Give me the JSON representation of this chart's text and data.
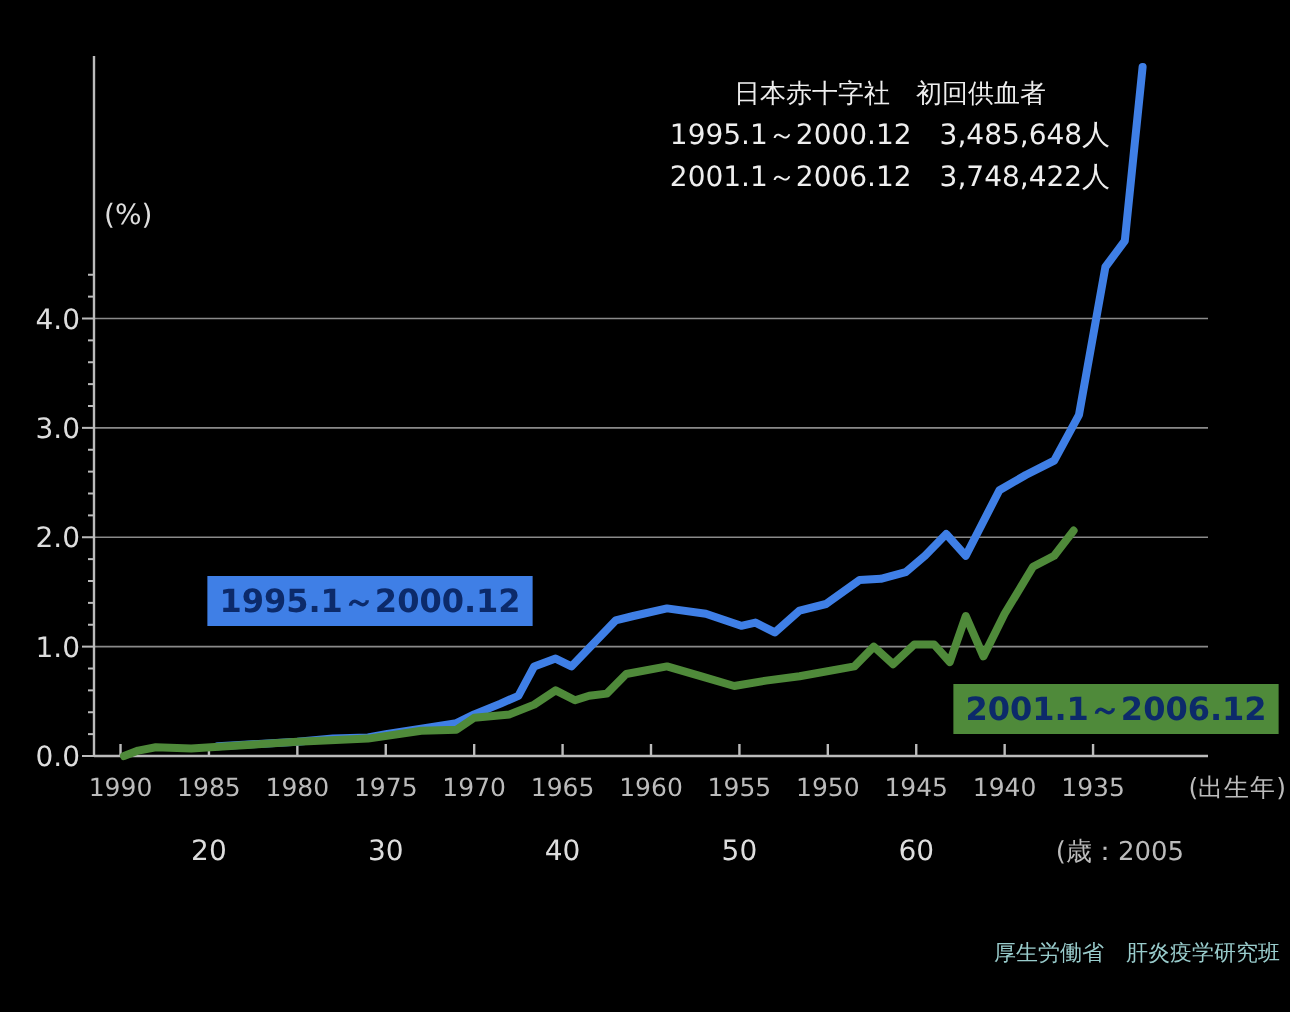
{
  "chart_data": {
    "type": "line",
    "xlabel": "(出生年)",
    "ylabel": "(%)",
    "x2label": "(歳：2005",
    "xlim": [
      1991.5,
      1928.5
    ],
    "xticks": [
      1990,
      1985,
      1980,
      1975,
      1970,
      1965,
      1960,
      1955,
      1950,
      1945,
      1940,
      1935
    ],
    "x2lim": [
      13.5,
      76.5
    ],
    "x2ticks": [
      20,
      30,
      40,
      50,
      60
    ],
    "ylim": [
      0,
      6.4
    ],
    "yticks": [
      {
        "value": 0,
        "label": "0.0"
      },
      {
        "value": 0.2,
        "label": null
      },
      {
        "value": 0.4,
        "label": null
      },
      {
        "value": 0.6,
        "label": null
      },
      {
        "value": 0.8,
        "label": null
      },
      {
        "value": 1,
        "label": "1.0"
      },
      {
        "value": 1.2,
        "label": null
      },
      {
        "value": 1.4,
        "label": null
      },
      {
        "value": 1.6,
        "label": null
      },
      {
        "value": 1.8,
        "label": null
      },
      {
        "value": 2,
        "label": "2.0"
      },
      {
        "value": 2.2,
        "label": null
      },
      {
        "value": 2.4,
        "label": null
      },
      {
        "value": 2.6,
        "label": null
      },
      {
        "value": 2.8,
        "label": null
      },
      {
        "value": 3,
        "label": "3.0"
      },
      {
        "value": 3.2,
        "label": null
      },
      {
        "value": 3.4,
        "label": null
      },
      {
        "value": 3.6,
        "label": null
      },
      {
        "value": 3.8,
        "label": null
      },
      {
        "value": 4,
        "label": "4.0"
      },
      {
        "value": 4.2,
        "label": null
      },
      {
        "value": 4.4,
        "label": null
      }
    ],
    "grid": "y",
    "series": [
      {
        "name": "1995.1～2000.12",
        "color": "#3f7fe6",
        "x": [
          1984.5,
          1980,
          1978,
          1976,
          1975,
          1973,
          1971,
          1970,
          1968.5,
          1967.5,
          1966.6,
          1965.4,
          1964.5,
          1962,
          1961,
          1959.1,
          1956.9,
          1954.9,
          1954.1,
          1953,
          1951.6,
          1950.1,
          1948.2,
          1947,
          1945.6,
          1944.5,
          1943.3,
          1942.2,
          1940.3,
          1938.8,
          1937.2,
          1935.8,
          1934.3,
          1933.2,
          1932.2
        ],
        "values": [
          0.09,
          0.13,
          0.16,
          0.17,
          0.2,
          0.25,
          0.3,
          0.38,
          0.48,
          0.55,
          0.82,
          0.89,
          0.82,
          1.24,
          1.28,
          1.35,
          1.3,
          1.19,
          1.22,
          1.13,
          1.33,
          1.39,
          1.61,
          1.62,
          1.68,
          1.83,
          2.03,
          1.83,
          2.43,
          2.57,
          2.7,
          3.12,
          4.47,
          4.71,
          6.3
        ]
      },
      {
        "name": "2001.1～2006.12",
        "color": "#4f8a3a",
        "x": [
          1989.8,
          1989,
          1988,
          1986,
          1984,
          1980,
          1976,
          1973,
          1971,
          1970,
          1968,
          1966.6,
          1965.4,
          1964.3,
          1963.5,
          1962.5,
          1961.4,
          1959.1,
          1957.2,
          1955.3,
          1953.5,
          1951.6,
          1948.5,
          1947.4,
          1946.3,
          1945.1,
          1944,
          1943.1,
          1942.2,
          1941.2,
          1940,
          1938.4,
          1937.2,
          1936.1
        ],
        "values": [
          0,
          0.05,
          0.08,
          0.07,
          0.09,
          0.13,
          0.16,
          0.23,
          0.24,
          0.35,
          0.38,
          0.47,
          0.6,
          0.51,
          0.55,
          0.57,
          0.75,
          0.82,
          0.73,
          0.64,
          0.69,
          0.73,
          0.82,
          1.0,
          0.84,
          1.02,
          1.02,
          0.86,
          1.28,
          0.91,
          1.3,
          1.73,
          1.83,
          2.06
        ]
      }
    ],
    "annotations": [
      "日本赤十字社　初回供血者",
      "1995.1～2000.12　3,485,648人",
      "2001.1～2006.12　3,748,422人",
      "厚生労働省　肝炎疫学研究班"
    ]
  }
}
